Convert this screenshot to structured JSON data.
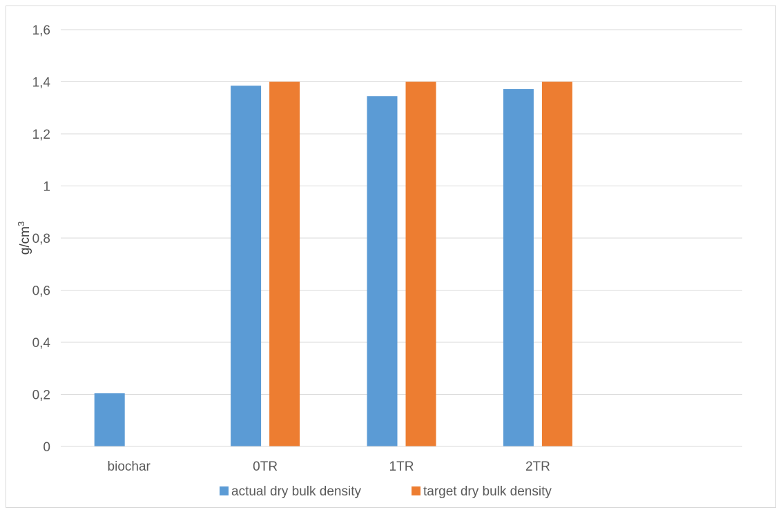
{
  "chart_data": {
    "type": "bar",
    "categories": [
      "biochar",
      "0TR",
      "1TR",
      "2TR",
      ""
    ],
    "series": [
      {
        "name": "actual dry bulk density",
        "values": [
          0.204,
          1.385,
          1.345,
          1.372,
          null
        ],
        "color": "#5b9bd5"
      },
      {
        "name": "target dry bulk density",
        "values": [
          null,
          1.4,
          1.4,
          1.4,
          null
        ],
        "color": "#ed7d31"
      }
    ],
    "title": "",
    "xlabel": "",
    "ylabel": "g/cm",
    "ylabel_superscript": "3",
    "ylim": [
      0,
      1.6
    ],
    "yticks": [
      "0",
      "0,2",
      "0,4",
      "0,6",
      "0,8",
      "1",
      "1,2",
      "1,4",
      "1,6"
    ],
    "grid": true,
    "legend_position": "bottom"
  }
}
